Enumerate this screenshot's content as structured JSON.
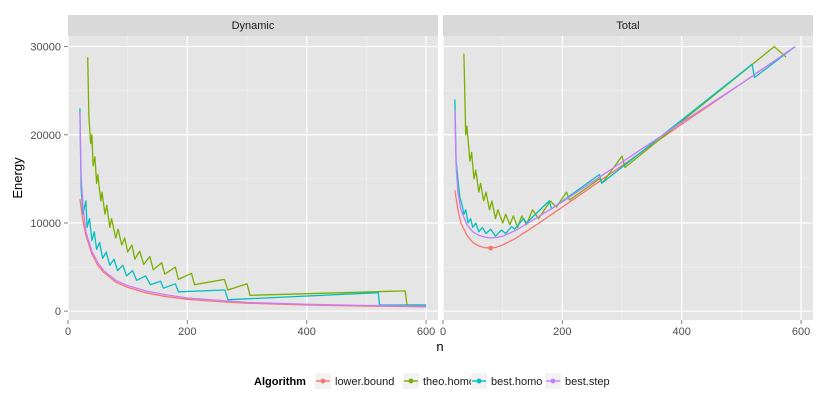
{
  "chart_data": {
    "type": "line",
    "facets": [
      "Dynamic",
      "Total"
    ],
    "xlabel": "n",
    "ylabel": "Energy",
    "xlim": [
      0,
      620
    ],
    "ylim": [
      -1000,
      31200
    ],
    "x_ticks": [
      0,
      200,
      400,
      600
    ],
    "y_ticks": [
      0,
      10000,
      20000,
      30000
    ],
    "y_tick_labels": [
      "0",
      "10000",
      "20000",
      "30000"
    ],
    "legend": {
      "title": "Algorithm",
      "position": "bottom",
      "entries": [
        "lower.bound",
        "theo.homo",
        "best.homo",
        "best.step"
      ]
    },
    "series": [
      {
        "name": "lower.bound",
        "color": "#F8766D",
        "Dynamic": [
          [
            20,
            12700
          ],
          [
            25,
            10300
          ],
          [
            30,
            8600
          ],
          [
            40,
            6500
          ],
          [
            50,
            5200
          ],
          [
            60,
            4400
          ],
          [
            80,
            3300
          ],
          [
            100,
            2700
          ],
          [
            130,
            2100
          ],
          [
            160,
            1700
          ],
          [
            200,
            1350
          ],
          [
            260,
            1050
          ],
          [
            300,
            900
          ],
          [
            400,
            700
          ],
          [
            500,
            580
          ],
          [
            600,
            500
          ]
        ],
        "Total": [
          [
            20,
            13700
          ],
          [
            25,
            11500
          ],
          [
            30,
            10000
          ],
          [
            40,
            8600
          ],
          [
            50,
            7800
          ],
          [
            60,
            7400
          ],
          [
            70,
            7200
          ],
          [
            80,
            7150
          ],
          [
            90,
            7250
          ],
          [
            100,
            7500
          ],
          [
            120,
            8200
          ],
          [
            150,
            9500
          ],
          [
            200,
            11800
          ],
          [
            300,
            16500
          ],
          [
            400,
            21200
          ],
          [
            500,
            25800
          ],
          [
            590,
            30000
          ]
        ],
        "Total_marker": [
          80,
          7150
        ]
      },
      {
        "name": "theo.homo",
        "color": "#7CAE00",
        "Dynamic": [
          [
            33,
            28800
          ],
          [
            35,
            22000
          ],
          [
            38,
            19000
          ],
          [
            40,
            20000
          ],
          [
            42,
            16500
          ],
          [
            45,
            17500
          ],
          [
            48,
            14500
          ],
          [
            50,
            15500
          ],
          [
            55,
            12500
          ],
          [
            57,
            13500
          ],
          [
            62,
            11000
          ],
          [
            65,
            12000
          ],
          [
            70,
            9500
          ],
          [
            73,
            10500
          ],
          [
            80,
            8300
          ],
          [
            84,
            9300
          ],
          [
            90,
            7500
          ],
          [
            95,
            8300
          ],
          [
            100,
            6700
          ],
          [
            107,
            7500
          ],
          [
            112,
            5900
          ],
          [
            120,
            6800
          ],
          [
            127,
            5300
          ],
          [
            137,
            6200
          ],
          [
            143,
            4700
          ],
          [
            157,
            5500
          ],
          [
            162,
            4200
          ],
          [
            180,
            5000
          ],
          [
            185,
            3600
          ],
          [
            207,
            4300
          ],
          [
            212,
            3000
          ],
          [
            262,
            3600
          ],
          [
            268,
            2400
          ],
          [
            300,
            3100
          ],
          [
            305,
            1800
          ],
          [
            565,
            2300
          ],
          [
            568,
            700
          ],
          [
            600,
            700
          ]
        ],
        "Total": [
          [
            35,
            29200
          ],
          [
            38,
            20000
          ],
          [
            40,
            21000
          ],
          [
            45,
            17000
          ],
          [
            48,
            18000
          ],
          [
            52,
            15000
          ],
          [
            55,
            16000
          ],
          [
            60,
            13500
          ],
          [
            63,
            14500
          ],
          [
            68,
            12500
          ],
          [
            72,
            13500
          ],
          [
            78,
            11500
          ],
          [
            82,
            12500
          ],
          [
            88,
            10500
          ],
          [
            92,
            11500
          ],
          [
            100,
            10000
          ],
          [
            105,
            11000
          ],
          [
            112,
            9800
          ],
          [
            118,
            10800
          ],
          [
            125,
            9500
          ],
          [
            132,
            10800
          ],
          [
            140,
            9800
          ],
          [
            150,
            11500
          ],
          [
            160,
            10500
          ],
          [
            180,
            12500
          ],
          [
            190,
            11800
          ],
          [
            207,
            13500
          ],
          [
            212,
            12600
          ],
          [
            262,
            15000
          ],
          [
            268,
            14600
          ],
          [
            300,
            17600
          ],
          [
            305,
            16300
          ],
          [
            555,
            30000
          ],
          [
            575,
            28800
          ]
        ]
      },
      {
        "name": "best.homo",
        "color": "#00BFC4",
        "Dynamic": [
          [
            20,
            23000
          ],
          [
            22,
            14000
          ],
          [
            25,
            11000
          ],
          [
            30,
            12500
          ],
          [
            32,
            9500
          ],
          [
            36,
            10500
          ],
          [
            40,
            8000
          ],
          [
            44,
            9000
          ],
          [
            48,
            7000
          ],
          [
            53,
            7800
          ],
          [
            58,
            6000
          ],
          [
            64,
            6700
          ],
          [
            70,
            5200
          ],
          [
            77,
            5900
          ],
          [
            83,
            4600
          ],
          [
            92,
            5200
          ],
          [
            98,
            4000
          ],
          [
            108,
            4600
          ],
          [
            115,
            3500
          ],
          [
            130,
            4000
          ],
          [
            138,
            3000
          ],
          [
            155,
            3400
          ],
          [
            160,
            2600
          ],
          [
            180,
            3100
          ],
          [
            185,
            2200
          ],
          [
            263,
            2400
          ],
          [
            268,
            1300
          ],
          [
            520,
            2100
          ],
          [
            522,
            700
          ],
          [
            600,
            700
          ]
        ],
        "Total": [
          [
            20,
            24000
          ],
          [
            22,
            17000
          ],
          [
            25,
            15000
          ],
          [
            28,
            13000
          ],
          [
            32,
            12000
          ],
          [
            35,
            11000
          ],
          [
            38,
            11500
          ],
          [
            42,
            10000
          ],
          [
            46,
            10500
          ],
          [
            50,
            9500
          ],
          [
            55,
            10000
          ],
          [
            60,
            9000
          ],
          [
            66,
            9500
          ],
          [
            72,
            8800
          ],
          [
            80,
            9300
          ],
          [
            88,
            8500
          ],
          [
            98,
            9200
          ],
          [
            105,
            8800
          ],
          [
            115,
            9600
          ],
          [
            120,
            9300
          ],
          [
            135,
            10500
          ],
          [
            140,
            10000
          ],
          [
            178,
            12500
          ],
          [
            182,
            11600
          ],
          [
            262,
            15500
          ],
          [
            266,
            14500
          ],
          [
            518,
            28000
          ],
          [
            522,
            26500
          ],
          [
            590,
            30000
          ]
        ]
      },
      {
        "name": "best.step",
        "color": "#C77CFF",
        "Dynamic": [
          [
            20,
            22500
          ],
          [
            22,
            15500
          ],
          [
            25,
            12000
          ],
          [
            30,
            9000
          ],
          [
            40,
            6800
          ],
          [
            50,
            5500
          ],
          [
            60,
            4600
          ],
          [
            80,
            3500
          ],
          [
            100,
            2900
          ],
          [
            130,
            2300
          ],
          [
            160,
            1900
          ],
          [
            200,
            1500
          ],
          [
            260,
            1200
          ],
          [
            300,
            1000
          ],
          [
            400,
            780
          ],
          [
            500,
            640
          ],
          [
            600,
            550
          ]
        ],
        "Total": [
          [
            20,
            22800
          ],
          [
            22,
            16500
          ],
          [
            25,
            13500
          ],
          [
            30,
            11500
          ],
          [
            40,
            9800
          ],
          [
            50,
            9000
          ],
          [
            60,
            8600
          ],
          [
            70,
            8400
          ],
          [
            80,
            8300
          ],
          [
            90,
            8350
          ],
          [
            100,
            8500
          ],
          [
            120,
            9100
          ],
          [
            150,
            10300
          ],
          [
            200,
            12400
          ],
          [
            300,
            16900
          ],
          [
            400,
            21400
          ],
          [
            500,
            25800
          ],
          [
            590,
            30000
          ]
        ]
      }
    ]
  }
}
